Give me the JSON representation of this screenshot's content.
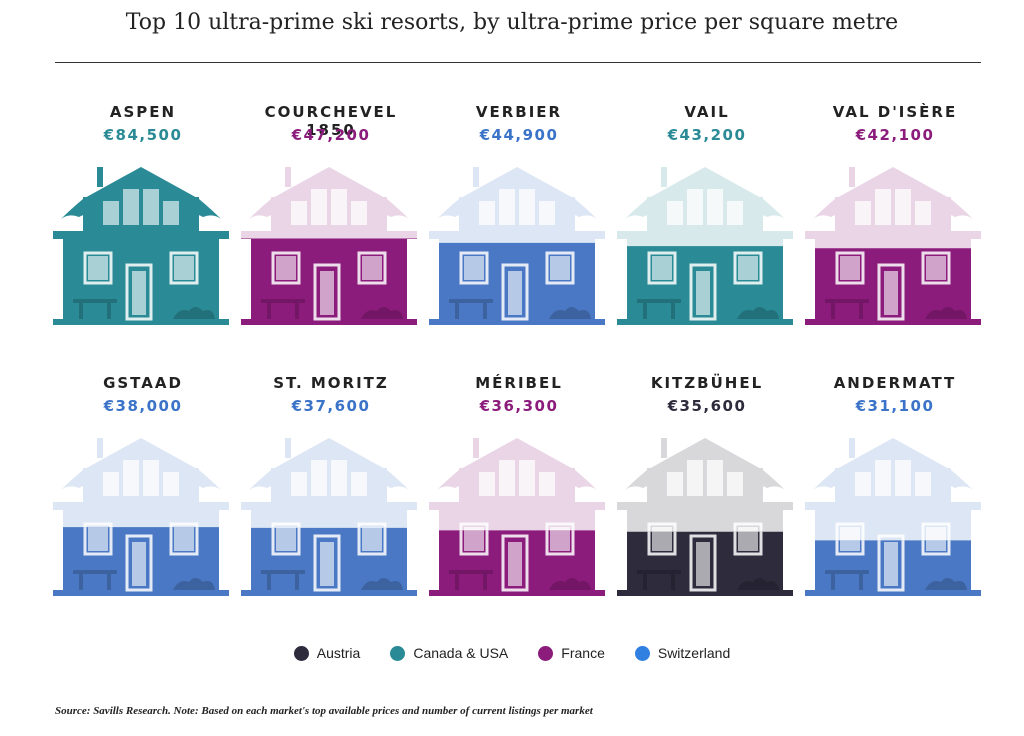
{
  "title": "Top 10 ultra-prime ski resorts, by ultra-prime price per square metre",
  "source": "Source: Savills Research. Note: Based on each market's top available prices and number of current listings per market",
  "legend": [
    {
      "label": "Austria",
      "color": "#2e2b3d"
    },
    {
      "label": "Canada & USA",
      "color": "#2a8a95"
    },
    {
      "label": "France",
      "color": "#8b1c7c"
    },
    {
      "label": "Switzerland",
      "color": "#2f80e0"
    }
  ],
  "chart_data": {
    "type": "bar",
    "title": "Top 10 ultra-prime ski resorts, by ultra-prime price per square metre",
    "xlabel": "",
    "ylabel": "",
    "ylim": [
      0,
      84500
    ],
    "categories": [
      "ASPEN",
      "COURCHEVEL 1850",
      "VERBIER",
      "VAIL",
      "VAL D'ISÈRE",
      "GSTAAD",
      "ST. MORITZ",
      "MÉRIBEL",
      "KITZBÜHEL",
      "ANDERMATT"
    ],
    "values": [
      84500,
      47200,
      44900,
      43200,
      42100,
      38000,
      37600,
      36300,
      35600,
      31100
    ],
    "price_labels": [
      "€84,500",
      "€47,200",
      "€44,900",
      "€43,200",
      "€42,100",
      "€38,000",
      "€37,600",
      "€36,300",
      "€35,600",
      "€31,100"
    ],
    "regions": [
      "Canada & USA",
      "France",
      "Switzerland",
      "Canada & USA",
      "France",
      "Switzerland",
      "Switzerland",
      "France",
      "Austria",
      "Switzerland"
    ],
    "region_colors": {
      "Austria": "#2e2b3d",
      "Canada & USA": "#2a8a95",
      "France": "#8b1c7c",
      "Switzerland": "#4a78c4"
    },
    "price_colors": {
      "Austria": "#2e2b3d",
      "Canada & USA": "#2a8a95",
      "France": "#8b1c7c",
      "Switzerland": "#3a73c8"
    }
  }
}
